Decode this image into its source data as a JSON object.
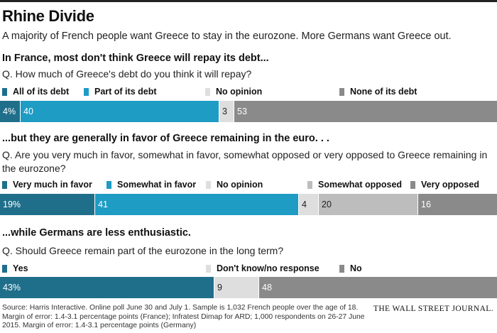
{
  "title": "Rhine Divide",
  "subtitle": "A majority of French people want Greece to stay in the eurozone. More Germans want Greece out.",
  "chart_data": [
    {
      "type": "bar",
      "orientation": "horizontal-stacked",
      "heading": "In France, most don't think Greece will repay its debt...",
      "question": "Q. How much of Greece's debt do you think it will repay?",
      "series": [
        {
          "name": "All of its debt",
          "value": 4,
          "label": "4%",
          "color": "#1f6f8b"
        },
        {
          "name": "Part of its debt",
          "value": 40,
          "label": "40",
          "color": "#1e9cc4"
        },
        {
          "name": "No opinion",
          "value": 3,
          "label": "3",
          "color": "#dedede"
        },
        {
          "name": "None of its debt",
          "value": 53,
          "label": "53",
          "color": "#8a8a8a"
        }
      ]
    },
    {
      "type": "bar",
      "orientation": "horizontal-stacked",
      "heading": "...but they are generally in favor of Greece remaining in the euro. . .",
      "question": "Q. Are you very much in favor, somewhat in favor, somewhat opposed or very opposed to Greece remaining in the eurozone?",
      "series": [
        {
          "name": "Very much in favor",
          "value": 19,
          "label": "19%",
          "color": "#1f6f8b"
        },
        {
          "name": "Somewhat in favor",
          "value": 41,
          "label": "41",
          "color": "#1e9cc4"
        },
        {
          "name": "No opinion",
          "value": 4,
          "label": "4",
          "color": "#dedede"
        },
        {
          "name": "Somewhat opposed",
          "value": 20,
          "label": "20",
          "color": "#bdbdbd"
        },
        {
          "name": "Very opposed",
          "value": 16,
          "label": "16",
          "color": "#8a8a8a"
        }
      ]
    },
    {
      "type": "bar",
      "orientation": "horizontal-stacked",
      "heading": "...while Germans are less enthusiastic.",
      "question": "Q. Should Greece remain part of the eurozone in the long term?",
      "series": [
        {
          "name": "Yes",
          "value": 43,
          "label": "43%",
          "color": "#1f6f8b"
        },
        {
          "name": "Don't know/no response",
          "value": 9,
          "label": "9",
          "color": "#dedede"
        },
        {
          "name": "No",
          "value": 48,
          "label": "48",
          "color": "#8a8a8a"
        }
      ]
    }
  ],
  "source": "Source: Harris Interactive. Online poll June 30 and July 1. Sample is 1,032 French people over the age of 18. Margin of error: 1.4-3.1 percentage points (France);  Infratest Dimap for ARD; 1,000 respondents on 26-27 June 2015. Margin of error: 1.4-3.1 percentage points (Germany)",
  "publisher": "THE WALL STREET JOURNAL."
}
